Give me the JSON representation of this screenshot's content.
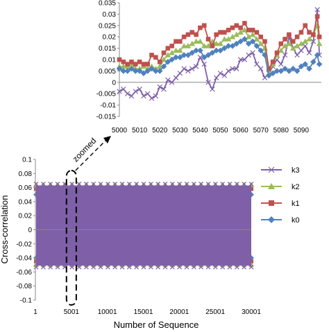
{
  "chart_data": [
    {
      "type": "line",
      "role": "zoomed-inset",
      "x": [
        5000,
        5002,
        5004,
        5006,
        5008,
        5010,
        5012,
        5014,
        5016,
        5018,
        5020,
        5022,
        5024,
        5026,
        5028,
        5030,
        5032,
        5034,
        5036,
        5038,
        5040,
        5042,
        5044,
        5046,
        5048,
        5050,
        5052,
        5054,
        5056,
        5058,
        5060,
        5062,
        5064,
        5066,
        5068,
        5070,
        5072,
        5074,
        5076,
        5078,
        5080,
        5082,
        5084,
        5086,
        5088,
        5090,
        5092,
        5094,
        5096,
        5098,
        5099
      ],
      "xlim": [
        5000,
        5100
      ],
      "x_ticks": [
        "5000",
        "5010",
        "5020",
        "5030",
        "5040",
        "5050",
        "5060",
        "5070",
        "5080",
        "5090"
      ],
      "ylim": [
        -0.015,
        0.035
      ],
      "y_ticks": [
        "0.035",
        "0.03",
        "0.025",
        "0.02",
        "0.015",
        "0.01",
        "0.005",
        "0",
        "-0.005",
        "-0.01",
        "-0.015"
      ],
      "grid": false,
      "series": [
        {
          "name": "k3",
          "color": "#7f5fa8",
          "marker": "x",
          "values": [
            -0.004,
            -0.003,
            -0.005,
            -0.006,
            -0.004,
            -0.003,
            -0.006,
            -0.005,
            -0.007,
            -0.006,
            -0.002,
            -0.003,
            0.001,
            0.0,
            0.002,
            0.004,
            0.006,
            0.005,
            0.006,
            0.007,
            0.011,
            0.008,
            0.0,
            -0.003,
            0.002,
            0.004,
            0.003,
            0.005,
            0.006,
            0.006,
            0.01,
            0.01,
            0.012,
            0.013,
            0.008,
            0.006,
            0.002,
            0.004,
            0.007,
            0.01,
            0.008,
            0.012,
            0.02,
            0.015,
            0.012,
            0.014,
            0.016,
            0.013,
            0.018,
            0.032,
            0.012
          ]
        },
        {
          "name": "k2",
          "color": "#9bbb59",
          "marker": "triangle",
          "values": [
            0.007,
            0.007,
            0.007,
            0.008,
            0.006,
            0.006,
            0.007,
            0.006,
            0.007,
            0.006,
            0.007,
            0.01,
            0.012,
            0.013,
            0.014,
            0.014,
            0.016,
            0.016,
            0.017,
            0.018,
            0.018,
            0.016,
            0.016,
            0.018,
            0.017,
            0.017,
            0.019,
            0.019,
            0.02,
            0.021,
            0.022,
            0.023,
            0.02,
            0.021,
            0.019,
            0.017,
            0.015,
            0.004,
            0.008,
            0.012,
            0.014,
            0.016,
            0.017,
            0.015,
            0.016,
            0.017,
            0.018,
            0.019,
            0.021,
            0.025,
            0.017
          ]
        },
        {
          "name": "k1",
          "color": "#c0504d",
          "marker": "square",
          "values": [
            0.01,
            0.009,
            0.008,
            0.009,
            0.008,
            0.009,
            0.008,
            0.008,
            0.012,
            0.011,
            0.009,
            0.013,
            0.015,
            0.016,
            0.018,
            0.018,
            0.02,
            0.021,
            0.022,
            0.021,
            0.024,
            0.025,
            0.019,
            0.016,
            0.021,
            0.022,
            0.022,
            0.023,
            0.024,
            0.025,
            0.024,
            0.026,
            0.023,
            0.023,
            0.022,
            0.02,
            0.018,
            0.006,
            0.009,
            0.013,
            0.017,
            0.019,
            0.021,
            0.018,
            0.02,
            0.022,
            0.025,
            0.022,
            0.021,
            0.029,
            0.02
          ]
        },
        {
          "name": "k0",
          "color": "#4f81bd",
          "marker": "diamond",
          "values": [
            0.006,
            0.005,
            0.005,
            0.006,
            0.005,
            0.005,
            0.004,
            0.005,
            0.006,
            0.005,
            0.005,
            0.007,
            0.009,
            0.01,
            0.011,
            0.011,
            0.012,
            0.012,
            0.013,
            0.014,
            0.014,
            0.011,
            0.012,
            0.013,
            0.014,
            0.014,
            0.015,
            0.016,
            0.016,
            0.017,
            0.018,
            0.019,
            0.017,
            0.018,
            0.016,
            0.014,
            0.012,
            0.003,
            0.004,
            0.005,
            0.005,
            0.006,
            0.005,
            0.006,
            0.005,
            0.007,
            0.008,
            0.006,
            0.009,
            0.012,
            0.008
          ]
        }
      ]
    },
    {
      "type": "line",
      "role": "main",
      "xlabel": "Number of Sequence",
      "ylabel": "Cross-correlation",
      "xlim": [
        1,
        30001
      ],
      "x_ticks": [
        "1",
        "5001",
        "10001",
        "15001",
        "20001",
        "25001",
        "30001"
      ],
      "ylim": [
        -0.1,
        0.1
      ],
      "y_ticks": [
        "0.1",
        "0.08",
        "0.06",
        "0.04",
        "0.02",
        "0",
        "-0.02",
        "-0.04",
        "-0.06",
        "-0.08",
        "-0.1"
      ],
      "grid": false,
      "legend_position": "right",
      "series": [
        {
          "name": "k3",
          "color": "#7f5fa8",
          "marker": "x",
          "upper": 0.065,
          "lower": -0.053
        },
        {
          "name": "k2",
          "color": "#9bbb59",
          "marker": "triangle",
          "upper": 0.064,
          "lower": -0.05
        },
        {
          "name": "k1",
          "color": "#c0504d",
          "marker": "square",
          "upper": 0.058,
          "lower": -0.045
        },
        {
          "name": "k0",
          "color": "#4f81bd",
          "marker": "diamond",
          "upper": 0.05,
          "lower": -0.04
        }
      ],
      "highlight_range": [
        4900,
        5100
      ],
      "annotation": "zoomed"
    }
  ]
}
